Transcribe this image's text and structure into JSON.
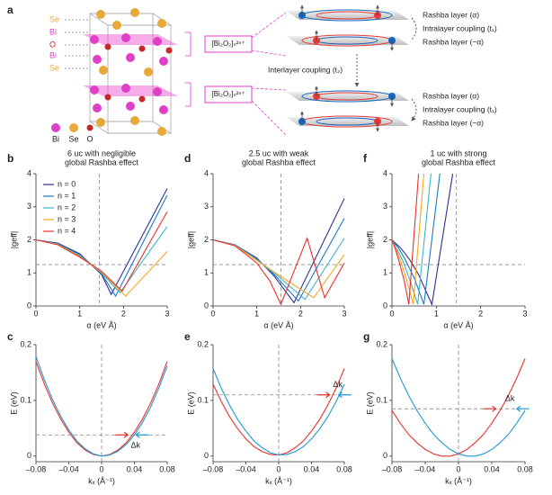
{
  "diagram": {
    "panel": "a",
    "atom_labels": [
      "Se",
      "Bi",
      "O",
      "Bi",
      "Se"
    ],
    "legend": [
      "Bi",
      "Se",
      "O"
    ],
    "blocks": [
      "[Bi₂O₂]ₙ²ⁿ⁺",
      "[Bi₂O₂]ₙ²ⁿ⁺"
    ],
    "layer_labels": [
      "Rashba layer (α)",
      "Intralayer coupling (t₁)",
      "Rashba layer (−α)",
      "Rashba layer (α)",
      "Intralayer coupling (t₁)",
      "Rashba layer (−α)"
    ],
    "interlayer": "Interlayer coupling (t₂)"
  },
  "chart_data": [
    {
      "type": "line",
      "panel": "b",
      "title": [
        "6 uc with negligible",
        "global Rashba effect"
      ],
      "x_label": "α (eV Å)",
      "y_label": "|geff|",
      "xlim": [
        0,
        3
      ],
      "ylim": [
        0,
        4
      ],
      "xticks": [
        0,
        1,
        2,
        3
      ],
      "yticks": [
        0,
        1,
        2,
        3,
        4
      ],
      "vline": 1.45,
      "hline": 1.25,
      "legend": true,
      "series": [
        {
          "name": "n = 0",
          "color": "#2e3192",
          "x": [
            0,
            0.5,
            1,
            1.5,
            1.72,
            3
          ],
          "values": [
            2,
            1.9,
            1.58,
            0.95,
            0.35,
            3.55
          ]
        },
        {
          "name": "n = 1",
          "color": "#1f78c8",
          "x": [
            0,
            0.5,
            1,
            1.5,
            1.82,
            3
          ],
          "values": [
            2,
            1.88,
            1.55,
            0.98,
            0.3,
            3.35
          ]
        },
        {
          "name": "n = 2",
          "color": "#3cb6c8",
          "x": [
            0,
            0.5,
            1,
            1.5,
            1.92,
            3
          ],
          "values": [
            2,
            1.87,
            1.52,
            1.0,
            0.4,
            2.4
          ]
        },
        {
          "name": "n = 3",
          "color": "#f5a623",
          "x": [
            0,
            0.5,
            1,
            1.5,
            2.05,
            3
          ],
          "values": [
            2,
            1.86,
            1.5,
            1.02,
            0.3,
            1.65
          ]
        },
        {
          "name": "n = 4",
          "color": "#e8312f",
          "x": [
            0,
            0.5,
            1,
            1.5,
            1.97,
            3
          ],
          "values": [
            2,
            1.85,
            1.48,
            1.05,
            0.45,
            2.85
          ]
        }
      ]
    },
    {
      "type": "line",
      "panel": "d",
      "title": [
        "2.5 uc with weak",
        "global Rashba effect"
      ],
      "x_label": "α (eV Å)",
      "y_label": "|geff|",
      "xlim": [
        0,
        3
      ],
      "ylim": [
        0,
        4
      ],
      "xticks": [
        0,
        1,
        2,
        3
      ],
      "yticks": [
        0,
        1,
        2,
        3,
        4
      ],
      "vline": 1.55,
      "hline": 1.25,
      "series": [
        {
          "color": "#2e3192",
          "x": [
            0,
            0.5,
            1,
            1.4,
            1.85,
            3
          ],
          "values": [
            2,
            1.85,
            1.45,
            0.9,
            0.1,
            3.25
          ]
        },
        {
          "color": "#1f78c8",
          "x": [
            0,
            0.5,
            1,
            1.4,
            1.95,
            3
          ],
          "values": [
            2,
            1.85,
            1.42,
            0.95,
            0.15,
            2.65
          ]
        },
        {
          "color": "#3cb6c8",
          "x": [
            0,
            0.5,
            1,
            1.4,
            2.1,
            3
          ],
          "values": [
            2,
            1.84,
            1.4,
            1.0,
            0.2,
            2.05
          ]
        },
        {
          "color": "#f5a623",
          "x": [
            0,
            0.5,
            1,
            1.4,
            2.3,
            3
          ],
          "values": [
            2,
            1.83,
            1.38,
            1.02,
            0.25,
            1.55
          ]
        },
        {
          "color": "#e8312f",
          "x": [
            0,
            0.5,
            1,
            1.3,
            1.55,
            2.15,
            2.55,
            3
          ],
          "values": [
            2,
            1.82,
            1.3,
            0.75,
            0.05,
            2.05,
            0.25,
            1.3
          ]
        }
      ]
    },
    {
      "type": "line",
      "panel": "f",
      "title": [
        "1 uc with strong",
        "global Rashba effect"
      ],
      "x_label": "α (eV Å)",
      "y_label": "|geff|",
      "xlim": [
        0,
        3
      ],
      "ylim": [
        0,
        4
      ],
      "xticks": [
        0,
        1,
        2,
        3
      ],
      "yticks": [
        0,
        1,
        2,
        3,
        4
      ],
      "vline": 1.45,
      "hline": 1.25,
      "series": [
        {
          "color": "#2e3192",
          "x": [
            0,
            0.2,
            0.4,
            0.6,
            0.9,
            1.37
          ],
          "values": [
            2,
            1.75,
            1.4,
            0.95,
            0.05,
            4
          ]
        },
        {
          "color": "#1f78c8",
          "x": [
            0,
            0.15,
            0.3,
            0.5,
            0.72,
            1.08
          ],
          "values": [
            2,
            1.75,
            1.4,
            0.85,
            0.05,
            4
          ]
        },
        {
          "color": "#3cb6c8",
          "x": [
            0,
            0.12,
            0.25,
            0.4,
            0.58,
            0.88
          ],
          "values": [
            2,
            1.7,
            1.35,
            0.8,
            0.05,
            4
          ]
        },
        {
          "color": "#f5a623",
          "x": [
            0,
            0.1,
            0.2,
            0.33,
            0.48,
            0.72
          ],
          "values": [
            2,
            1.7,
            1.35,
            0.8,
            0.05,
            4
          ]
        },
        {
          "color": "#e8312f",
          "x": [
            0,
            0.08,
            0.16,
            0.27,
            0.38,
            0.6
          ],
          "values": [
            2,
            1.7,
            1.35,
            0.8,
            0.05,
            4
          ]
        }
      ]
    },
    {
      "type": "line",
      "panel": "c",
      "x_label": "kₓ (Å⁻¹)",
      "y_label": "E (eV)",
      "annotation": "Δk",
      "xlim": [
        -0.08,
        0.08
      ],
      "ylim": [
        -0.01,
        0.2
      ],
      "xticks": [
        {
          "value": -0.08,
          "label": "–0.08"
        },
        {
          "value": -0.04,
          "label": "–0.04"
        },
        0,
        0.04,
        0.08
      ],
      "yticks": [
        0,
        0.1,
        0.2
      ],
      "vline": 0,
      "hline": 0.038,
      "arrows": [
        0.032,
        0.042
      ],
      "x": [
        -0.08,
        -0.07,
        -0.06,
        -0.05,
        -0.04,
        -0.03,
        -0.02,
        -0.01,
        0,
        0.01,
        0.02,
        0.03,
        0.04,
        0.05,
        0.06,
        0.07,
        0.08
      ],
      "series": [
        {
          "color": "#e8312f",
          "values": [
            0.17,
            0.13,
            0.096,
            0.067,
            0.043,
            0.024,
            0.011,
            0.003,
            0,
            0.003,
            0.011,
            0.024,
            0.043,
            0.067,
            0.096,
            0.13,
            0.17
          ]
        },
        {
          "color": "#1f9ad6",
          "values": [
            0.179,
            0.138,
            0.102,
            0.072,
            0.047,
            0.027,
            0.013,
            0.004,
            0,
            0.002,
            0.009,
            0.021,
            0.038,
            0.061,
            0.089,
            0.123,
            0.162
          ]
        }
      ]
    },
    {
      "type": "line",
      "panel": "e",
      "x_label": "kₓ (Å⁻¹)",
      "y_label": "E (eV)",
      "annotation": "Δk",
      "xlim": [
        -0.08,
        0.08
      ],
      "ylim": [
        -0.01,
        0.2
      ],
      "xticks": [
        {
          "value": -0.08,
          "label": "–0.08"
        },
        {
          "value": -0.04,
          "label": "–0.04"
        },
        0,
        0.04,
        0.08
      ],
      "yticks": [
        0,
        0.1,
        0.2
      ],
      "vline": 0,
      "hline": 0.11,
      "arrows": [
        0.062,
        0.073
      ],
      "x": [
        -0.08,
        -0.07,
        -0.06,
        -0.05,
        -0.04,
        -0.03,
        -0.02,
        -0.01,
        0,
        0.01,
        0.02,
        0.03,
        0.04,
        0.05,
        0.06,
        0.07,
        0.08
      ],
      "series": [
        {
          "color": "#e8312f",
          "values": [
            0.129,
            0.098,
            0.071,
            0.049,
            0.031,
            0.017,
            0.008,
            0.003,
            0.002,
            0.006,
            0.015,
            0.027,
            0.045,
            0.066,
            0.092,
            0.122,
            0.157
          ]
        },
        {
          "color": "#1f9ad6",
          "values": [
            0.157,
            0.122,
            0.092,
            0.066,
            0.045,
            0.027,
            0.015,
            0.006,
            0.002,
            0.003,
            0.008,
            0.017,
            0.031,
            0.049,
            0.071,
            0.098,
            0.129
          ]
        }
      ]
    },
    {
      "type": "line",
      "panel": "g",
      "x_label": "kₓ (Å⁻¹)",
      "y_label": "E (eV)",
      "annotation": "Δk",
      "xlim": [
        -0.08,
        0.08
      ],
      "ylim": [
        -0.01,
        0.2
      ],
      "xticks": [
        {
          "value": -0.08,
          "label": "–0.08"
        },
        {
          "value": -0.04,
          "label": "–0.04"
        },
        0,
        0.04,
        0.08
      ],
      "yticks": [
        0,
        0.1,
        0.2
      ],
      "vline": 0,
      "hline": 0.085,
      "arrows": [
        0.045,
        0.07
      ],
      "x": [
        -0.08,
        -0.07,
        -0.06,
        -0.05,
        -0.04,
        -0.03,
        -0.02,
        -0.01,
        0,
        0.01,
        0.02,
        0.03,
        0.04,
        0.05,
        0.06,
        0.07,
        0.08
      ],
      "series": [
        {
          "color": "#e8312f",
          "values": [
            0.082,
            0.059,
            0.039,
            0.024,
            0.012,
            0.004,
            0,
            0,
            0.004,
            0.012,
            0.024,
            0.039,
            0.059,
            0.082,
            0.109,
            0.14,
            0.175
          ]
        },
        {
          "color": "#1f9ad6",
          "values": [
            0.175,
            0.14,
            0.109,
            0.082,
            0.059,
            0.039,
            0.024,
            0.012,
            0.004,
            0,
            0,
            0.004,
            0.012,
            0.024,
            0.039,
            0.059,
            0.082
          ]
        }
      ]
    }
  ]
}
